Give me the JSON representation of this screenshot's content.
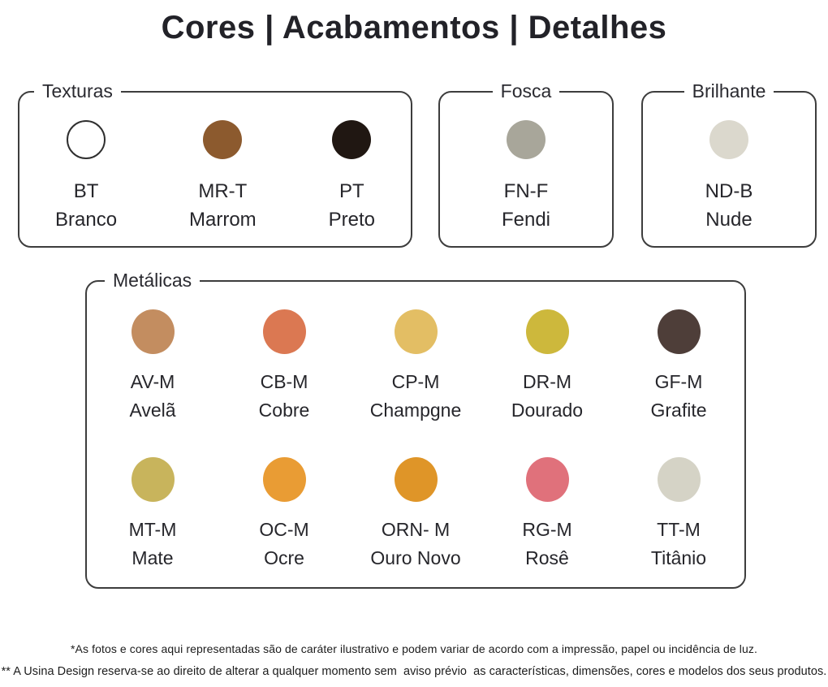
{
  "title": "Cores | Acabamentos | Detalhes",
  "groups": [
    {
      "label": "Texturas",
      "swatches": [
        {
          "code": "BT",
          "name": "Branco",
          "color": "#ffffff"
        },
        {
          "code": "MR-T",
          "name": "Marrom",
          "color": "#8c5a2e"
        },
        {
          "code": "PT",
          "name": "Preto",
          "color": "#201712"
        }
      ]
    },
    {
      "label": "Fosca",
      "swatches": [
        {
          "code": "FN-F",
          "name": "Fendi",
          "color": "#a8a69a"
        }
      ]
    },
    {
      "label": "Brilhante",
      "swatches": [
        {
          "code": "ND-B",
          "name": "Nude",
          "color": "#dbd8cd"
        }
      ]
    },
    {
      "label": "Metálicas",
      "swatches": [
        {
          "code": "AV-M",
          "name": "Avelã",
          "color": "#c38d60"
        },
        {
          "code": "CB-M",
          "name": "Cobre",
          "color": "#db7852"
        },
        {
          "code": "CP-M",
          "name": "Champgne",
          "color": "#e3be64"
        },
        {
          "code": "DR-M",
          "name": "Dourado",
          "color": "#cdb83c"
        },
        {
          "code": "GF-M",
          "name": "Grafite",
          "color": "#4e3e39"
        },
        {
          "code": "MT-M",
          "name": "Mate",
          "color": "#c8b45c"
        },
        {
          "code": "OC-M",
          "name": "Ocre",
          "color": "#e99c34"
        },
        {
          "code": "ORN- M",
          "name": "Ouro Novo",
          "color": "#df9528"
        },
        {
          "code": "RG-M",
          "name": "Rosê",
          "color": "#e0717b"
        },
        {
          "code": "TT-M",
          "name": "Titânio",
          "color": "#d5d3c6"
        }
      ]
    }
  ],
  "footer": {
    "line1": "*As fotos e cores aqui representadas são de caráter ilustrativo e podem variar de acordo com a impressão, papel ou incidência de luz.",
    "line2": "** A Usina Design reserva-se ao direito de alterar a qualquer momento sem  aviso prévio  as características, dimensões, cores e modelos dos seus produtos."
  }
}
